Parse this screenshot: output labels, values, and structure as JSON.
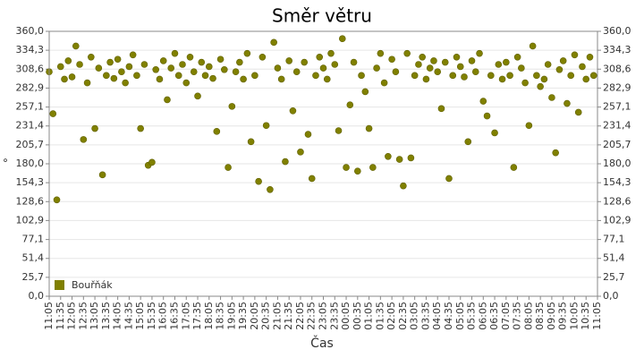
{
  "chart_data": {
    "type": "scatter",
    "title": "Směr větru",
    "xlabel": "Čas",
    "ylabel": "°",
    "grid": true,
    "legend": "bottom-left",
    "x": [
      "11:05",
      "11:15",
      "11:25",
      "11:35",
      "11:45",
      "11:55",
      "12:05",
      "12:15",
      "12:25",
      "12:35",
      "12:45",
      "12:55",
      "13:05",
      "13:15",
      "13:25",
      "13:35",
      "13:45",
      "13:55",
      "14:05",
      "14:15",
      "14:25",
      "14:35",
      "14:45",
      "14:55",
      "15:05",
      "15:15",
      "15:25",
      "15:35",
      "15:45",
      "15:55",
      "16:05",
      "16:15",
      "16:25",
      "16:35",
      "16:45",
      "16:55",
      "17:05",
      "17:15",
      "17:25",
      "17:35",
      "17:45",
      "17:55",
      "18:05",
      "18:15",
      "18:25",
      "18:35",
      "18:45",
      "18:55",
      "19:05",
      "19:15",
      "19:25",
      "19:35",
      "19:45",
      "19:55",
      "20:05",
      "20:15",
      "20:25",
      "20:35",
      "20:45",
      "20:55",
      "21:05",
      "21:15",
      "21:25",
      "21:35",
      "21:45",
      "21:55",
      "22:05",
      "22:15",
      "22:25",
      "22:35",
      "22:45",
      "22:55",
      "23:05",
      "23:15",
      "23:25",
      "23:35",
      "23:45",
      "23:55",
      "00:05",
      "00:15",
      "00:25",
      "00:35",
      "00:45",
      "00:55",
      "01:05",
      "01:15",
      "01:25",
      "01:35",
      "01:45",
      "01:55",
      "02:05",
      "02:15",
      "02:25",
      "02:35",
      "02:45",
      "02:55",
      "03:05",
      "03:15",
      "03:25",
      "03:35",
      "03:45",
      "03:55",
      "04:05",
      "04:15",
      "04:25",
      "04:35",
      "04:45",
      "04:55",
      "05:05",
      "05:15",
      "05:25",
      "05:35",
      "05:45",
      "05:55",
      "06:05",
      "06:15",
      "06:25",
      "06:35",
      "06:45",
      "06:55",
      "07:05",
      "07:15",
      "07:25",
      "07:35",
      "07:45",
      "07:55",
      "08:05",
      "08:15",
      "08:25",
      "08:35",
      "08:45",
      "08:55",
      "09:05",
      "09:15",
      "09:25",
      "09:35",
      "09:45",
      "09:55",
      "10:05",
      "10:15",
      "10:25",
      "10:35",
      "10:45",
      "10:55"
    ],
    "series": [
      {
        "name": "Bouřňák",
        "color": "#808000",
        "values": [
          305,
          248,
          131,
          312,
          295,
          320,
          298,
          340,
          315,
          213,
          290,
          325,
          228,
          310,
          165,
          300,
          318,
          296,
          322,
          305,
          290,
          312,
          328,
          300,
          228,
          315,
          178,
          182,
          308,
          295,
          320,
          267,
          310,
          330,
          300,
          315,
          290,
          325,
          305,
          272,
          318,
          300,
          312,
          296,
          224,
          322,
          308,
          175,
          258,
          305,
          318,
          295,
          330,
          210,
          300,
          156,
          325,
          232,
          145,
          345,
          310,
          295,
          183,
          320,
          252,
          305,
          196,
          318,
          220,
          160,
          300,
          325,
          310,
          295,
          330,
          315,
          225,
          350,
          175,
          260,
          318,
          170,
          300,
          278,
          228,
          175,
          310,
          330,
          290,
          190,
          322,
          305,
          186,
          150,
          330,
          188,
          300,
          315,
          325,
          295,
          310,
          320,
          305,
          255,
          318,
          160,
          300,
          325,
          312,
          298,
          210,
          320,
          305,
          330,
          265,
          245,
          300,
          222,
          315,
          295,
          318,
          300,
          175,
          325,
          310,
          290,
          232,
          340,
          300,
          285,
          295,
          315,
          270,
          195,
          308,
          320,
          262,
          300,
          328,
          250,
          312,
          295,
          325,
          300
        ]
      }
    ],
    "ylim": [
      0,
      360
    ],
    "yticks": [
      {
        "value": 0,
        "label": "0,0"
      },
      {
        "value": 25.7,
        "label": "25,7"
      },
      {
        "value": 51.4,
        "label": "51,4"
      },
      {
        "value": 77.1,
        "label": "77,1"
      },
      {
        "value": 102.9,
        "label": "102,9"
      },
      {
        "value": 128.6,
        "label": "128,6"
      },
      {
        "value": 154.3,
        "label": "154,3"
      },
      {
        "value": 180,
        "label": "180,0"
      },
      {
        "value": 205.7,
        "label": "205,7"
      },
      {
        "value": 231.4,
        "label": "231,4"
      },
      {
        "value": 257.1,
        "label": "257,1"
      },
      {
        "value": 282.9,
        "label": "282,9"
      },
      {
        "value": 308.6,
        "label": "308,6"
      },
      {
        "value": 334.3,
        "label": "334,3"
      },
      {
        "value": 360,
        "label": "360,0"
      }
    ],
    "xticks": [
      "11:05",
      "11:35",
      "12:05",
      "12:35",
      "13:05",
      "13:35",
      "14:05",
      "14:35",
      "15:05",
      "15:35",
      "16:05",
      "16:35",
      "17:05",
      "17:35",
      "18:05",
      "18:35",
      "19:05",
      "19:35",
      "20:05",
      "20:35",
      "21:05",
      "21:35",
      "22:05",
      "22:35",
      "23:05",
      "23:35",
      "00:05",
      "00:35",
      "01:05",
      "01:35",
      "02:05",
      "02:35",
      "03:05",
      "03:35",
      "04:05",
      "04:35",
      "05:05",
      "05:35",
      "06:05",
      "06:35",
      "07:05",
      "07:35",
      "08:05",
      "08:35",
      "09:05",
      "09:35",
      "10:05",
      "10:35",
      "11:05"
    ]
  }
}
